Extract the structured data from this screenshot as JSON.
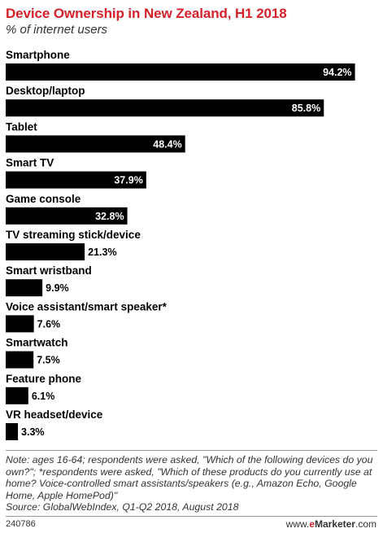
{
  "header": {
    "title": "Device Ownership in New Zealand, H1 2018",
    "subtitle": "% of internet users"
  },
  "chart_data": {
    "type": "bar",
    "orientation": "horizontal",
    "categories": [
      "Smartphone",
      "Desktop/laptop",
      "Tablet",
      "Smart TV",
      "Game console",
      "TV streaming stick/device",
      "Smart wristband",
      "Voice assistant/smart speaker*",
      "Smartwatch",
      "Feature phone",
      "VR headset/device"
    ],
    "values": [
      94.2,
      85.8,
      48.4,
      37.9,
      32.8,
      21.3,
      9.9,
      7.6,
      7.5,
      6.1,
      3.3
    ],
    "value_labels": [
      "94.2%",
      "85.8%",
      "48.4%",
      "37.9%",
      "32.8%",
      "21.3%",
      "9.9%",
      "7.6%",
      "7.5%",
      "6.1%",
      "3.3%"
    ],
    "xlim": [
      0,
      100
    ],
    "bar_color": "#000000",
    "title": "Device Ownership in New Zealand, H1 2018",
    "subtitle": "% of internet users"
  },
  "footer": {
    "note": "Note: ages 16-64; respondents were asked, \"Which of the following devices do you own?\"; *respondents were asked, \"Which of these products do you currently use at home? Voice-controlled smart assistants/speakers (e.g., Amazon Echo, Google Home, Apple HomePod)\"",
    "source": "Source: GlobalWebIndex, Q1-Q2 2018, August 2018",
    "chart_id": "240786",
    "brand_www": "www.",
    "brand_e": "e",
    "brand_rest": "Marketer",
    "brand_tld": ".com"
  },
  "colors": {
    "title": "#d3222a",
    "bar": "#000000",
    "value_inside": "#ffffff",
    "value_outside": "#000000"
  }
}
